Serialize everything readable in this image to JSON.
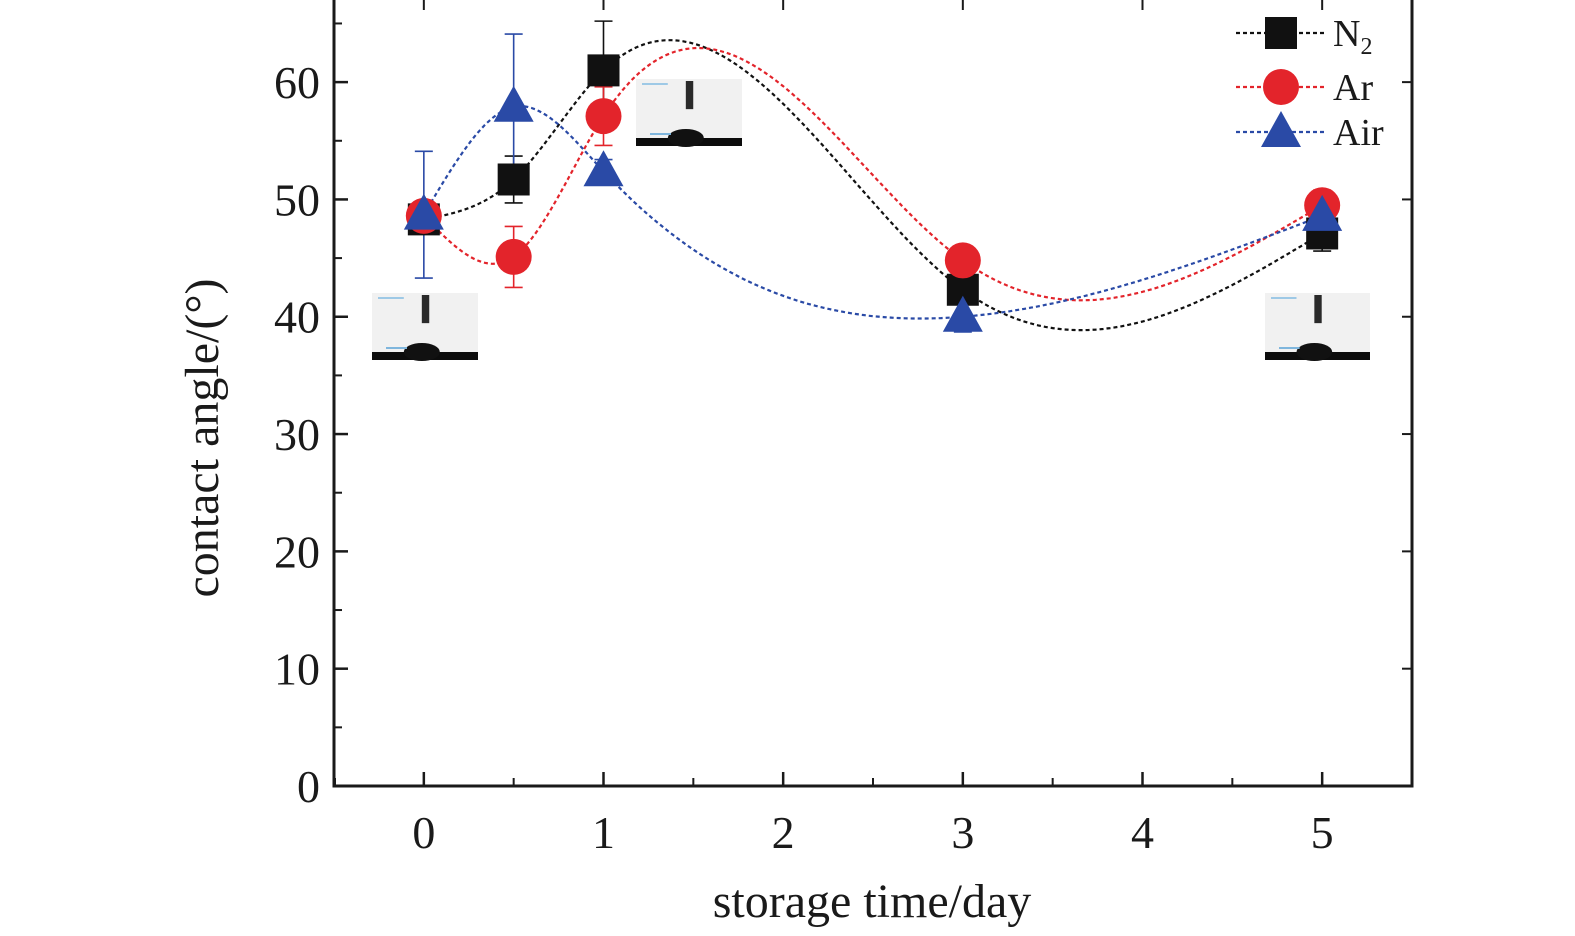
{
  "chart_data": {
    "type": "scatter",
    "xlabel": "storage time/day",
    "ylabel": "contact angle/(°)",
    "xlim": [
      -0.5,
      5.5
    ],
    "ylim": [
      0,
      67
    ],
    "x_ticks": [
      "0",
      "1",
      "2",
      "3",
      "4",
      "5"
    ],
    "y_ticks": [
      "0",
      "10",
      "20",
      "30",
      "40",
      "50",
      "60"
    ],
    "legend_position": "top-right",
    "x": [
      0,
      0.5,
      1,
      3,
      5
    ],
    "series": [
      {
        "name": "N2",
        "name_main": "N",
        "name_sub": "2",
        "marker": "square",
        "color": "#111111",
        "values": [
          48.3,
          51.7,
          61.0,
          42.3,
          47.1
        ],
        "errors": [
          0.8,
          2.0,
          4.2,
          2.5,
          1.5
        ]
      },
      {
        "name": "Ar",
        "marker": "circle",
        "color": "#e3242b",
        "values": [
          48.6,
          45.1,
          57.1,
          44.8,
          49.5
        ],
        "errors": [
          1.0,
          2.6,
          2.5,
          0.6,
          1.3
        ]
      },
      {
        "name": "Air",
        "marker": "triangle",
        "color": "#2a4aa6",
        "values": [
          48.7,
          57.9,
          52.4,
          40.0,
          48.6
        ],
        "errors": [
          5.4,
          6.2,
          1.0,
          1.3,
          0.8
        ]
      }
    ],
    "annotations": [
      "droplet-image-day-0",
      "droplet-image-day-1",
      "droplet-image-day-5"
    ]
  }
}
